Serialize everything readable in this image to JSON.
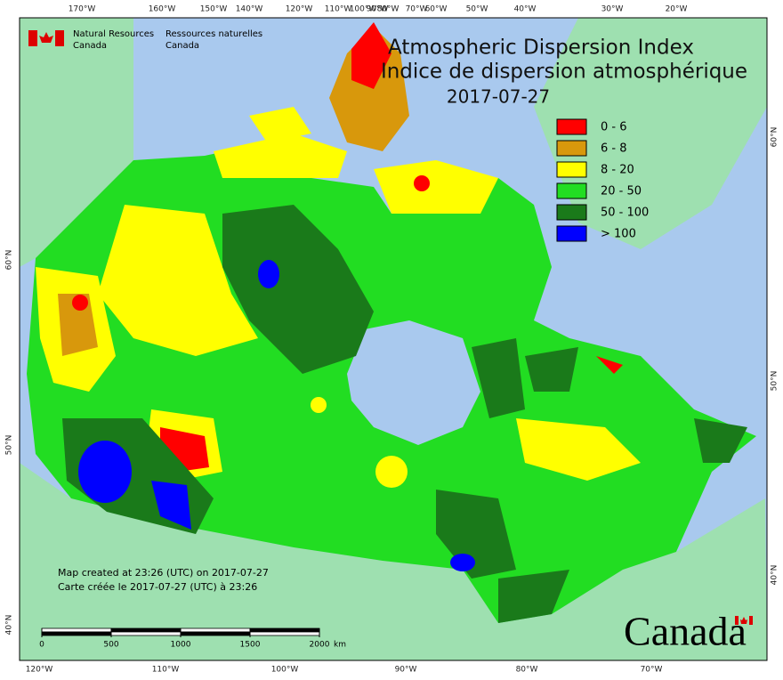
{
  "map": {
    "header": {
      "agency_en": [
        "Natural Resources",
        "Canada"
      ],
      "agency_fr": [
        "Ressources naturelles",
        "Canada"
      ]
    },
    "title": [
      "Atmospheric Dispersion Index",
      "Indice de dispersion atmosphérique"
    ],
    "date": "2017-07-27",
    "legend": [
      {
        "label": "0 - 6",
        "color": "#ff0000"
      },
      {
        "label": "6 - 8",
        "color": "#d8980c"
      },
      {
        "label": "8 - 20",
        "color": "#ffff00"
      },
      {
        "label": "20 - 50",
        "color": "#22dd22"
      },
      {
        "label": "50 - 100",
        "color": "#1a7a1a"
      },
      {
        "label": "> 100",
        "color": "#0000ff"
      }
    ],
    "graticule": {
      "top": [
        "170°W",
        "160°W",
        "150°W",
        "140°W",
        "120°W",
        "110°W",
        "100°W",
        "90°W",
        "80°W",
        "70°W",
        "60°W",
        "50°W",
        "40°W",
        "30°W",
        "20°W"
      ],
      "bottom": [
        "120°W",
        "110°W",
        "100°W",
        "90°W",
        "80°W",
        "70°W"
      ],
      "left": [
        "60°N",
        "50°N",
        "40°N"
      ],
      "right": [
        "60°N",
        "50°N",
        "40°N"
      ]
    },
    "footer": {
      "created_en": "Map created at 23:26 (UTC) on 2017-07-27",
      "created_fr": "Carte créée le 2017-07-27 (UTC) à 23:26"
    },
    "scale_bar": {
      "ticks": [
        0,
        500,
        1000,
        1500,
        2000
      ],
      "unit": "km"
    },
    "wordmark": "Canada"
  }
}
